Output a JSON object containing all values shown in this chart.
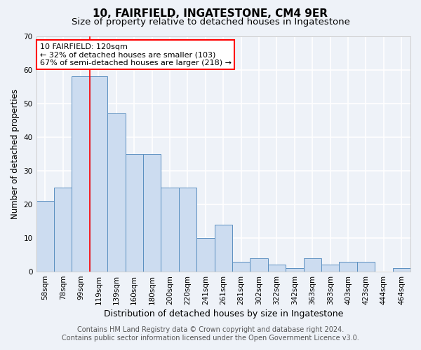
{
  "title": "10, FAIRFIELD, INGATESTONE, CM4 9ER",
  "subtitle": "Size of property relative to detached houses in Ingatestone",
  "xlabel": "Distribution of detached houses by size in Ingatestone",
  "ylabel": "Number of detached properties",
  "categories": [
    "58sqm",
    "78sqm",
    "99sqm",
    "119sqm",
    "139sqm",
    "160sqm",
    "180sqm",
    "200sqm",
    "220sqm",
    "241sqm",
    "261sqm",
    "281sqm",
    "302sqm",
    "322sqm",
    "342sqm",
    "363sqm",
    "383sqm",
    "403sqm",
    "423sqm",
    "444sqm",
    "464sqm"
  ],
  "values": [
    21,
    25,
    58,
    58,
    47,
    35,
    35,
    25,
    25,
    10,
    14,
    3,
    4,
    2,
    1,
    4,
    2,
    3,
    3,
    0,
    1
  ],
  "bar_color": "#ccdcf0",
  "bar_edge_color": "#5a8fc0",
  "property_line_x": 2.5,
  "property_line_label": "10 FAIRFIELD: 120sqm",
  "annotation_line1": "← 32% of detached houses are smaller (103)",
  "annotation_line2": "67% of semi-detached houses are larger (218) →",
  "annotation_box_facecolor": "white",
  "annotation_box_edgecolor": "red",
  "vline_color": "red",
  "ylim": [
    0,
    70
  ],
  "yticks": [
    0,
    10,
    20,
    30,
    40,
    50,
    60,
    70
  ],
  "footer1": "Contains HM Land Registry data © Crown copyright and database right 2024.",
  "footer2": "Contains public sector information licensed under the Open Government Licence v3.0.",
  "bg_color": "#eef2f8",
  "plot_bg_color": "#eef2f8",
  "grid_color": "white",
  "title_fontsize": 11,
  "subtitle_fontsize": 9.5,
  "xlabel_fontsize": 9,
  "ylabel_fontsize": 8.5,
  "tick_fontsize": 7.5,
  "annotation_fontsize": 8,
  "footer_fontsize": 7
}
